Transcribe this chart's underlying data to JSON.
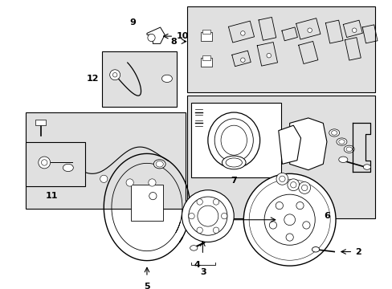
{
  "bg_color": "#ffffff",
  "line_color": "#000000",
  "box_bg": "#e0e0e0",
  "fig_width": 4.89,
  "fig_height": 3.6,
  "dpi": 100
}
